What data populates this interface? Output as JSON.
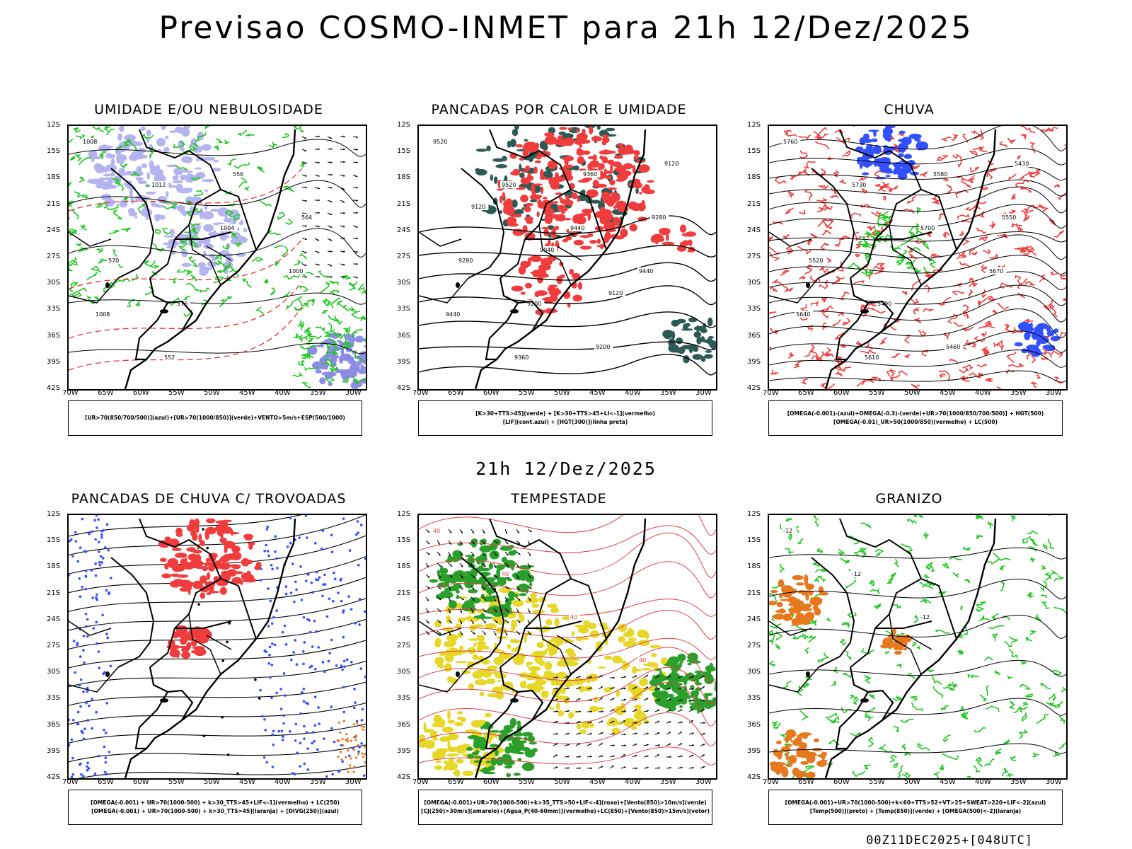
{
  "main_title": "Previsao COSMO-INMET  para 21h 12/Dez/2025",
  "mid_title": "21h 12/Dez/2025",
  "footer": "00Z11DEC2025+[048UTC]",
  "lat_labels": [
    "12S",
    "15S",
    "18S",
    "21S",
    "24S",
    "27S",
    "30S",
    "33S",
    "36S",
    "39S",
    "42S"
  ],
  "lon_labels": [
    "70W",
    "65W",
    "60W",
    "55W",
    "50W",
    "45W",
    "40W",
    "35W",
    "30W"
  ],
  "colors": {
    "blue_shade": "#b4b4f0",
    "green_contour": "#1ec81e",
    "red_shade": "#f03c3c",
    "dark_teal": "#2d5a55",
    "yellow": "#e6d728",
    "dark_green": "#2aa02a",
    "orange": "#e6781e",
    "blue_dot": "#3250ff"
  },
  "panels": [
    {
      "title": "UMIDADE E/OU NEBULOSIDADE",
      "legend": [
        "[UR>70(850/700/500)](azul)+[UR>70(1000/850)](verde)+VENTO>5m/s+ESP(500/1000)"
      ],
      "contour_labels": [
        "1008",
        "1012",
        "1004",
        "1000",
        "1008",
        "552",
        "556",
        "564",
        "570",
        "576"
      ]
    },
    {
      "title": "PANCADAS POR CALOR E UMIDADE",
      "legend": [
        "[K>30+TTS>45](verde)  +  [K>30+TTS>45+LI<-1](vermelho)",
        "[LIF](cont.azul)  +  [HGT(300)](linha preta)"
      ],
      "contour_labels": [
        "9520",
        "9520",
        "9440",
        "9440",
        "9440",
        "9360",
        "9360",
        "9280",
        "9280",
        "9200",
        "9200",
        "9120",
        "9120",
        "9040",
        "9120"
      ]
    },
    {
      "title": "CHUVA",
      "legend": [
        "[OMEGA(-0.001)-(azul)+OMEGA(-0.3)-(verde)+UR>70(1000/850/700/500)]  +  HGT(500)",
        "[OMEGA(-0.01)_UR>50(1000/850)(vermelho)  +  LC(500)"
      ],
      "contour_labels": [
        "5760",
        "5730",
        "5700",
        "5670",
        "5640",
        "5610",
        "5580",
        "5550",
        "5520",
        "5490",
        "5460",
        "5430"
      ]
    },
    {
      "title": "PANCADAS DE CHUVA C/ TROVOADAS",
      "legend": [
        "[OMEGA(-0.001)  +  UR>70(1000-500)  +  k>30_TTS>45+LIF<-1](vermelho)  +  LC(250)",
        "[OMEGA(-0.001)  +  UR>70(1000-500)  +  k>30_TTS>45](laranja)  +  [DIVG(250)](azul)"
      ]
    },
    {
      "title": "TEMPESTADE",
      "legend": [
        "[OMEGA(-0.001)+UR>70(1000-500)+k>35_TTS>50+LIF<-4](roxo)+[Vento(850)>10m/s](verde)",
        "[CJ(250)>30m/s](amarelo)+[Agua_P(40-60mm)](vermelho)+LC(850)+[Vento(850)>15m/s](vetor)"
      ],
      "contour_labels": [
        "40",
        "40",
        "40",
        "40"
      ]
    },
    {
      "title": "GRANIZO",
      "legend": [
        "[OMEGA(-0.001)+UR>70(1000-500)+k<60+TTS>52+VT>25+SWEAT>220+LIF<-2](azul)",
        "[Temp(500)](preto)  +  [Temp(850)](verde)  +  [OMEGA(500)<-2](laranja)"
      ],
      "contour_labels": [
        "-12",
        "-12",
        "-12"
      ]
    }
  ]
}
